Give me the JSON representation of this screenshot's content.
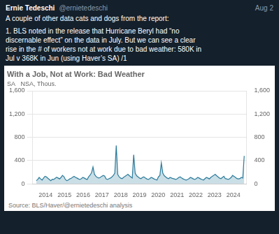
{
  "chart_data": {
    "type": "area",
    "title": "With a Job, Not at Work: Bad Weather",
    "subtitle": "SA   NSA, Thous.",
    "source": "Source: BLS/Haver/@ernietedeschi analysis",
    "annotations": [
      "Ernie Tedeschi",
      "@ernietedeschi",
      "Aug 2",
      "A couple of other data cats and dogs from the report:",
      "1. BLS noted in the release that Hurricane Beryl had “no",
      "discernable effect” on the data in July. But we can see a clear",
      "rise in the # of workers not at work due to bad weather: 580K in",
      "Jul v 368K in Jun (using Haver’s SA) /1"
    ],
    "color": "#2b7b9b",
    "grid": true,
    "xlim": [
      2013.3,
      2024.7
    ],
    "xticks": [
      2014,
      2015,
      2016,
      2017,
      2018,
      2019,
      2020,
      2021,
      2022,
      2023,
      2024
    ],
    "ylim": [
      0,
      1600
    ],
    "yticks": [
      0,
      400,
      800,
      {
        "value": 1200,
        "label": "1,200"
      },
      {
        "value": 1600,
        "label": "1,600"
      }
    ],
    "y2lim": [
      0,
      1600
    ],
    "y2ticks": [
      0,
      400,
      800,
      {
        "value": 1200,
        "label": "1,200"
      },
      {
        "value": 1600,
        "label": "1,600"
      }
    ],
    "x": [
      2013.5,
      2013.5775,
      2013.655,
      2013.7324,
      2013.8099,
      2013.8874,
      2013.9649,
      2014.0424,
      2014.1199,
      2014.1973,
      2014.2748,
      2014.3523,
      2014.4298,
      2014.5073,
      2014.5848,
      2014.6622,
      2014.7397,
      2014.8172,
      2014.8947,
      2014.9722,
      2015.0497,
      2015.1271,
      2015.2046,
      2015.2821,
      2015.3596,
      2015.4371,
      2015.5145,
      2015.592,
      2015.6695,
      2015.747,
      2015.8245,
      2015.902,
      2015.9794,
      2016.0569,
      2016.1344,
      2016.2119,
      2016.2894,
      2016.3669,
      2016.4443,
      2016.5218,
      2016.5993,
      2016.6768,
      2016.7543,
      2016.8317,
      2016.9092,
      2016.9867,
      2017.0642,
      2017.1417,
      2017.2192,
      2017.2966,
      2017.3741,
      2017.4516,
      2017.5291,
      2017.6066,
      2017.6841,
      2017.7615,
      2017.839,
      2017.9165,
      2017.994,
      2018.0715,
      2018.149,
      2018.2264,
      2018.3039,
      2018.3814,
      2018.4589,
      2018.5364,
      2018.6138,
      2018.6913,
      2018.7688,
      2018.8463,
      2018.9238,
      2019.0013,
      2019.0787,
      2019.1562,
      2019.2337,
      2019.3112,
      2019.3887,
      2019.4662,
      2019.5436,
      2019.6211,
      2019.6986,
      2019.7761,
      2019.8536,
      2019.931,
      2020.0085,
      2020.086,
      2020.1635,
      2020.241,
      2020.3185,
      2020.3959,
      2020.4734,
      2020.5509,
      2020.6284,
      2020.7059,
      2020.7834,
      2020.8608,
      2020.9383,
      2021.0158,
      2021.0933,
      2021.1708,
      2021.2483,
      2021.3257,
      2021.4032,
      2021.4807,
      2021.5582,
      2021.6357,
      2021.7131,
      2021.7906,
      2021.8681,
      2021.9456,
      2022.0231,
      2022.1006,
      2022.178,
      2022.2555,
      2022.333,
      2022.4105,
      2022.488,
      2022.5655,
      2022.6429,
      2022.7204,
      2022.7979,
      2022.8754,
      2022.9529,
      2023.0303,
      2023.1078,
      2023.1853,
      2023.2628,
      2023.3403,
      2023.4178,
      2023.4952,
      2023.5727,
      2023.6502,
      2023.7277,
      2023.8052,
      2023.8827,
      2023.9601,
      2024.0376,
      2024.1151,
      2024.1926,
      2024.2701,
      2024.3476,
      2024.425,
      2024.5025,
      2024.58
    ],
    "values": [
      55,
      75,
      110,
      85,
      65,
      100,
      130,
      120,
      95,
      75,
      55,
      80,
      75,
      95,
      115,
      100,
      85,
      110,
      145,
      125,
      75,
      55,
      65,
      85,
      95,
      115,
      130,
      110,
      100,
      85,
      75,
      90,
      110,
      100,
      85,
      75,
      120,
      150,
      190,
      290,
      165,
      130,
      110,
      100,
      110,
      130,
      145,
      135,
      85,
      75,
      90,
      100,
      120,
      145,
      185,
      660,
      165,
      120,
      100,
      90,
      110,
      130,
      145,
      165,
      140,
      120,
      100,
      500,
      185,
      140,
      120,
      100,
      90,
      110,
      120,
      100,
      85,
      75,
      90,
      110,
      100,
      85,
      75,
      65,
      120,
      145,
      360,
      185,
      140,
      120,
      100,
      90,
      110,
      100,
      90,
      85,
      75,
      90,
      110,
      120,
      100,
      85,
      75,
      65,
      75,
      90,
      110,
      100,
      85,
      75,
      90,
      110,
      100,
      85,
      75,
      65,
      90,
      110,
      100,
      85,
      110,
      130,
      145,
      165,
      140,
      120,
      100,
      90,
      110,
      130,
      90,
      85,
      75,
      90,
      110,
      145,
      130,
      110,
      90,
      85,
      90,
      110,
      100,
      480
    ]
  }
}
